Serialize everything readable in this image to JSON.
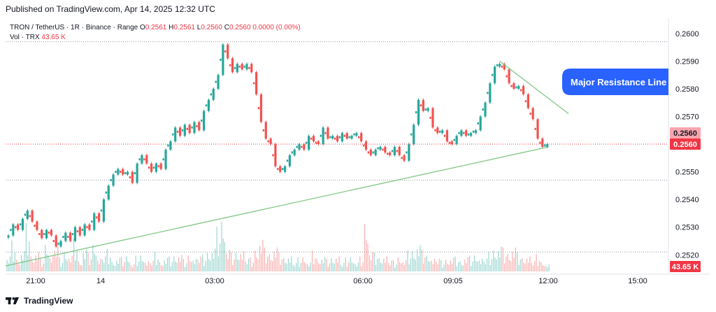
{
  "header": {
    "published": "Published on TradingView.com, Apr 14, 2025 12:32 UTC"
  },
  "legend": {
    "symbol": "TRON / TetherUS · 1R · Binance · Range",
    "o_label": "O",
    "o_value": "0.2561",
    "h_label": "H",
    "h_value": "0.2561",
    "l_label": "L",
    "l_value": "0.2560",
    "c_label": "C",
    "c_value": "0.2560",
    "change": "0.0000 (0.00%)",
    "vol_label": "Vol · TRX",
    "vol_value": "43.65 K"
  },
  "footer": {
    "brand": "TradingView"
  },
  "colors": {
    "up": "#26a69a",
    "down": "#ef5350",
    "trend_line": "#81c784",
    "price_label_bg": "#f23645",
    "callout_bg": "#2962ff",
    "grid": "#b2b5be"
  },
  "chart_data": {
    "type": "candlestick",
    "y_axis": {
      "ticks": [
        "0.2520",
        "0.2530",
        "0.2540",
        "0.2550",
        "0.2560",
        "0.2570",
        "0.2580",
        "0.2590",
        "0.2600"
      ],
      "range": [
        0.2514,
        0.2605
      ]
    },
    "x_axis": {
      "ticks": [
        "21:00",
        "14",
        "03:00",
        "06:00",
        "09:05",
        "12:00",
        "15:00"
      ]
    },
    "price": [
      0.2527,
      0.2531,
      0.2529,
      0.2533,
      0.2536,
      0.2532,
      0.2529,
      0.2526,
      0.2529,
      0.2527,
      0.2523,
      0.2525,
      0.2528,
      0.2525,
      0.253,
      0.2527,
      0.2531,
      0.2529,
      0.2535,
      0.2532,
      0.254,
      0.2545,
      0.2549,
      0.2551,
      0.2549,
      0.255,
      0.2546,
      0.2553,
      0.2556,
      0.2553,
      0.255,
      0.2553,
      0.2551,
      0.2558,
      0.2561,
      0.2566,
      0.2563,
      0.2567,
      0.2564,
      0.2568,
      0.2565,
      0.2572,
      0.2576,
      0.258,
      0.2585,
      0.2596,
      0.2591,
      0.2586,
      0.2589,
      0.2587,
      0.2589,
      0.2586,
      0.2578,
      0.2568,
      0.2562,
      0.256,
      0.2552,
      0.255,
      0.2552,
      0.2556,
      0.2558,
      0.256,
      0.2558,
      0.2563,
      0.2561,
      0.256,
      0.2566,
      0.2562,
      0.2563,
      0.2561,
      0.2564,
      0.2562,
      0.2563,
      0.2564,
      0.2561,
      0.2558,
      0.2556,
      0.2558,
      0.2559,
      0.2557,
      0.2556,
      0.2559,
      0.2556,
      0.2554,
      0.256,
      0.2567,
      0.2576,
      0.2572,
      0.2573,
      0.2566,
      0.2564,
      0.2565,
      0.2561,
      0.256,
      0.2563,
      0.2565,
      0.2563,
      0.2564,
      0.2565,
      0.257,
      0.2575,
      0.2582,
      0.2588,
      0.2589,
      0.2587,
      0.2582,
      0.258,
      0.2581,
      0.2578,
      0.2573,
      0.2569,
      0.2562,
      0.2559,
      0.256
    ],
    "volume": [
      0.35,
      0.55,
      0.25,
      0.45,
      0.8,
      0.3,
      0.4,
      0.2,
      0.5,
      0.3,
      0.6,
      0.25,
      0.4,
      0.35,
      0.55,
      0.2,
      0.45,
      0.3,
      0.5,
      0.25,
      0.35,
      0.4,
      0.2,
      0.3,
      0.25,
      0.3,
      0.15,
      0.25,
      0.3,
      0.2,
      0.25,
      0.35,
      0.2,
      0.3,
      0.25,
      0.3,
      0.35,
      0.2,
      0.3,
      0.25,
      0.35,
      0.3,
      0.4,
      0.5,
      0.75,
      1.0,
      0.45,
      0.3,
      0.35,
      0.4,
      0.3,
      0.25,
      0.45,
      0.7,
      0.4,
      0.35,
      0.5,
      0.3,
      0.25,
      0.3,
      0.2,
      0.25,
      0.3,
      0.2,
      0.35,
      0.25,
      0.3,
      0.2,
      0.25,
      0.3,
      0.2,
      0.25,
      0.3,
      0.2,
      0.25,
      0.95,
      0.4,
      0.3,
      0.25,
      0.3,
      0.25,
      0.2,
      0.3,
      0.25,
      0.35,
      0.4,
      0.55,
      0.35,
      0.3,
      0.25,
      0.3,
      0.2,
      0.25,
      0.3,
      0.25,
      0.2,
      0.3,
      0.25,
      0.3,
      0.25,
      0.3,
      0.35,
      0.45,
      0.55,
      0.4,
      0.35,
      0.5,
      0.3,
      0.25,
      0.3,
      0.25,
      0.3,
      0.2,
      0.15
    ],
    "annotations": {
      "callout_text": "Major Resistance Line",
      "current_price_label": "0.2560",
      "prev_price_label": "0.2560",
      "volume_label": "43.65 K",
      "support_line": {
        "from": [
          0,
          0.2516
        ],
        "to": [
          113,
          0.2559
        ]
      },
      "resistance_line": {
        "from": [
          103,
          0.259
        ],
        "to": [
          116,
          0.2571
        ]
      },
      "dotted_levels": [
        0.2597,
        0.256,
        0.2547,
        0.2521
      ]
    }
  }
}
